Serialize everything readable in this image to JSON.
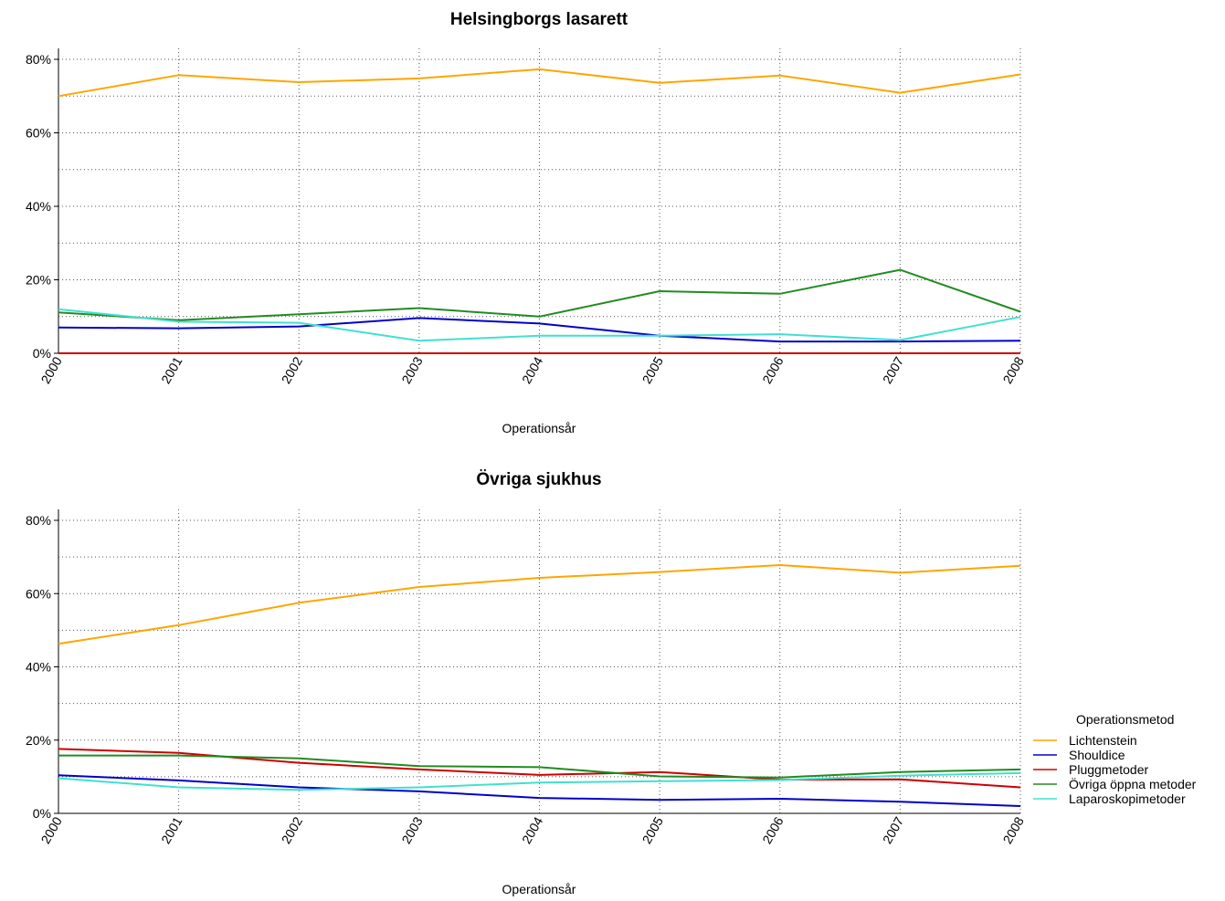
{
  "chart_data": [
    {
      "type": "line",
      "title": "Helsingborgs lasarett",
      "xlabel": "Operationsår",
      "ylabel": "",
      "x": [
        "2000",
        "2001",
        "2002",
        "2003",
        "2004",
        "2005",
        "2006",
        "2007",
        "2008"
      ],
      "yticks": [
        "0%",
        "20%",
        "40%",
        "60%",
        "80%"
      ],
      "ylim": [
        0,
        80
      ],
      "grid": true,
      "series": [
        {
          "name": "Lichtenstein",
          "color": "#FFA500",
          "values": [
            70,
            75.7,
            73.8,
            74.8,
            77.3,
            73.6,
            75.6,
            70.9,
            75.9
          ]
        },
        {
          "name": "Shouldice",
          "color": "#0000CD",
          "values": [
            7.0,
            6.8,
            7.3,
            9.6,
            8.1,
            4.8,
            3.2,
            3.2,
            3.4
          ]
        },
        {
          "name": "Pluggmetoder",
          "color": "#CD0000",
          "values": [
            0,
            0,
            0,
            0,
            0,
            0,
            0,
            0,
            0
          ]
        },
        {
          "name": "Övriga öppna metoder",
          "color": "#228B22",
          "values": [
            11.1,
            9.0,
            10.6,
            12.3,
            10.0,
            16.9,
            16.2,
            22.7,
            11.3
          ]
        },
        {
          "name": "Laparoskopimetoder",
          "color": "#40E0D0",
          "values": [
            12.0,
            8.6,
            8.3,
            3.4,
            4.8,
            4.8,
            5.2,
            3.6,
            9.9
          ]
        }
      ]
    },
    {
      "type": "line",
      "title": "Övriga sjukhus",
      "xlabel": "Operationsår",
      "ylabel": "",
      "x": [
        "2000",
        "2001",
        "2002",
        "2003",
        "2004",
        "2005",
        "2006",
        "2007",
        "2008"
      ],
      "yticks": [
        "0%",
        "20%",
        "40%",
        "60%",
        "80%"
      ],
      "ylim": [
        0,
        80
      ],
      "grid": true,
      "series": [
        {
          "name": "Lichtenstein",
          "color": "#FFA500",
          "values": [
            46.3,
            51.4,
            57.5,
            61.8,
            64.3,
            65.9,
            67.8,
            65.7,
            67.6
          ]
        },
        {
          "name": "Shouldice",
          "color": "#0000CD",
          "values": [
            10.4,
            9.0,
            7.1,
            6.0,
            4.2,
            3.7,
            4.0,
            3.2,
            2.0
          ]
        },
        {
          "name": "Pluggmetoder",
          "color": "#CD0000",
          "values": [
            17.6,
            16.5,
            13.8,
            12.0,
            10.5,
            11.3,
            9.2,
            9.3,
            7.1
          ]
        },
        {
          "name": "Övriga öppna metoder",
          "color": "#228B22",
          "values": [
            15.8,
            15.8,
            15.0,
            12.9,
            12.6,
            10.1,
            9.8,
            11.3,
            12.0
          ]
        },
        {
          "name": "Laparoskopimetoder",
          "color": "#40E0D0",
          "values": [
            9.6,
            7.1,
            6.4,
            7.1,
            8.4,
            8.8,
            9.1,
            10.3,
            11.0
          ]
        }
      ]
    }
  ],
  "legend": {
    "title": "Operationsmetod",
    "placement": "right",
    "items": [
      {
        "label": "Lichtenstein",
        "color": "#FFA500"
      },
      {
        "label": "Shouldice",
        "color": "#0000CD"
      },
      {
        "label": "Pluggmetoder",
        "color": "#CD0000"
      },
      {
        "label": "Övriga öppna metoder",
        "color": "#228B22"
      },
      {
        "label": "Laparoskopimetoder",
        "color": "#40E0D0"
      }
    ]
  }
}
